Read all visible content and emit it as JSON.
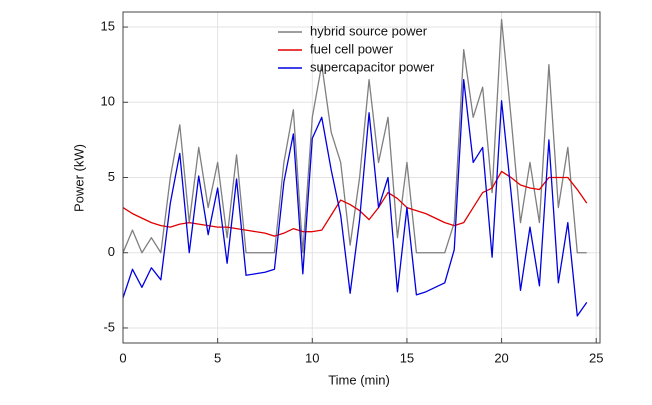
{
  "chart_data": {
    "type": "line",
    "x_label": "Time (min)",
    "y_label": "Power (kW)",
    "x": [
      0,
      0.5,
      1,
      1.5,
      2,
      2.5,
      3,
      3.5,
      4,
      4.5,
      5,
      5.5,
      6,
      6.5,
      7,
      7.5,
      8,
      8.5,
      9,
      9.5,
      10,
      10.5,
      11,
      11.5,
      12,
      12.5,
      13,
      13.5,
      14,
      14.5,
      15,
      15.5,
      16,
      16.5,
      17,
      17.5,
      18,
      18.5,
      19,
      19.5,
      20,
      20.5,
      21,
      21.5,
      22,
      22.5,
      23,
      23.5,
      24,
      24.5
    ],
    "series": [
      {
        "name": "hybrid source power",
        "color": "#7f7f7f",
        "values": [
          0,
          1.5,
          0,
          1,
          0,
          5,
          8.5,
          2,
          7,
          3,
          6,
          1,
          6.5,
          0,
          0,
          0,
          0,
          6,
          9.5,
          0,
          9,
          12.5,
          8,
          6,
          0.5,
          5,
          11.5,
          6,
          9,
          1,
          6,
          0,
          0,
          0,
          0,
          2,
          13.5,
          9,
          11,
          4,
          15.5,
          9,
          2,
          6,
          2,
          12.5,
          3,
          7,
          0,
          0
        ]
      },
      {
        "name": "fuel cell power",
        "color": "#e00000",
        "values": [
          3,
          2.6,
          2.3,
          2,
          1.8,
          1.7,
          1.9,
          2,
          1.9,
          1.8,
          1.7,
          1.7,
          1.6,
          1.5,
          1.4,
          1.3,
          1.1,
          1.3,
          1.6,
          1.4,
          1.4,
          1.5,
          2.5,
          3.5,
          3.2,
          2.8,
          2.2,
          3,
          4,
          3.6,
          3,
          2.8,
          2.6,
          2.3,
          2,
          1.8,
          2,
          3,
          4,
          4.3,
          5.4,
          5,
          4.5,
          4.3,
          4.2,
          5,
          5,
          5,
          4.2,
          3.3
        ]
      },
      {
        "name": "supercapacitor power",
        "color": "#0000e0",
        "values": [
          -3,
          -1.1,
          -2.3,
          -1,
          -1.8,
          3.3,
          6.6,
          0,
          5.1,
          1.2,
          4.3,
          -0.7,
          4.9,
          -1.5,
          -1.4,
          -1.3,
          -1.1,
          4.7,
          7.9,
          -1.4,
          7.6,
          9,
          5.5,
          2.5,
          -2.7,
          2.2,
          9.3,
          3,
          5,
          -2.6,
          3,
          -2.8,
          -2.6,
          -2.3,
          -2,
          0.2,
          11.5,
          6,
          7,
          -0.3,
          10.1,
          4,
          -2.5,
          1.7,
          -2.2,
          7.5,
          -2,
          2,
          -4.2,
          -3.3
        ]
      }
    ],
    "xlim": [
      0,
      25.2
    ],
    "ylim": [
      -6,
      16
    ],
    "xticks": [
      0,
      5,
      10,
      15,
      20,
      25
    ],
    "yticks": [
      -5,
      0,
      5,
      10,
      15
    ],
    "grid": true,
    "legend": "top"
  }
}
